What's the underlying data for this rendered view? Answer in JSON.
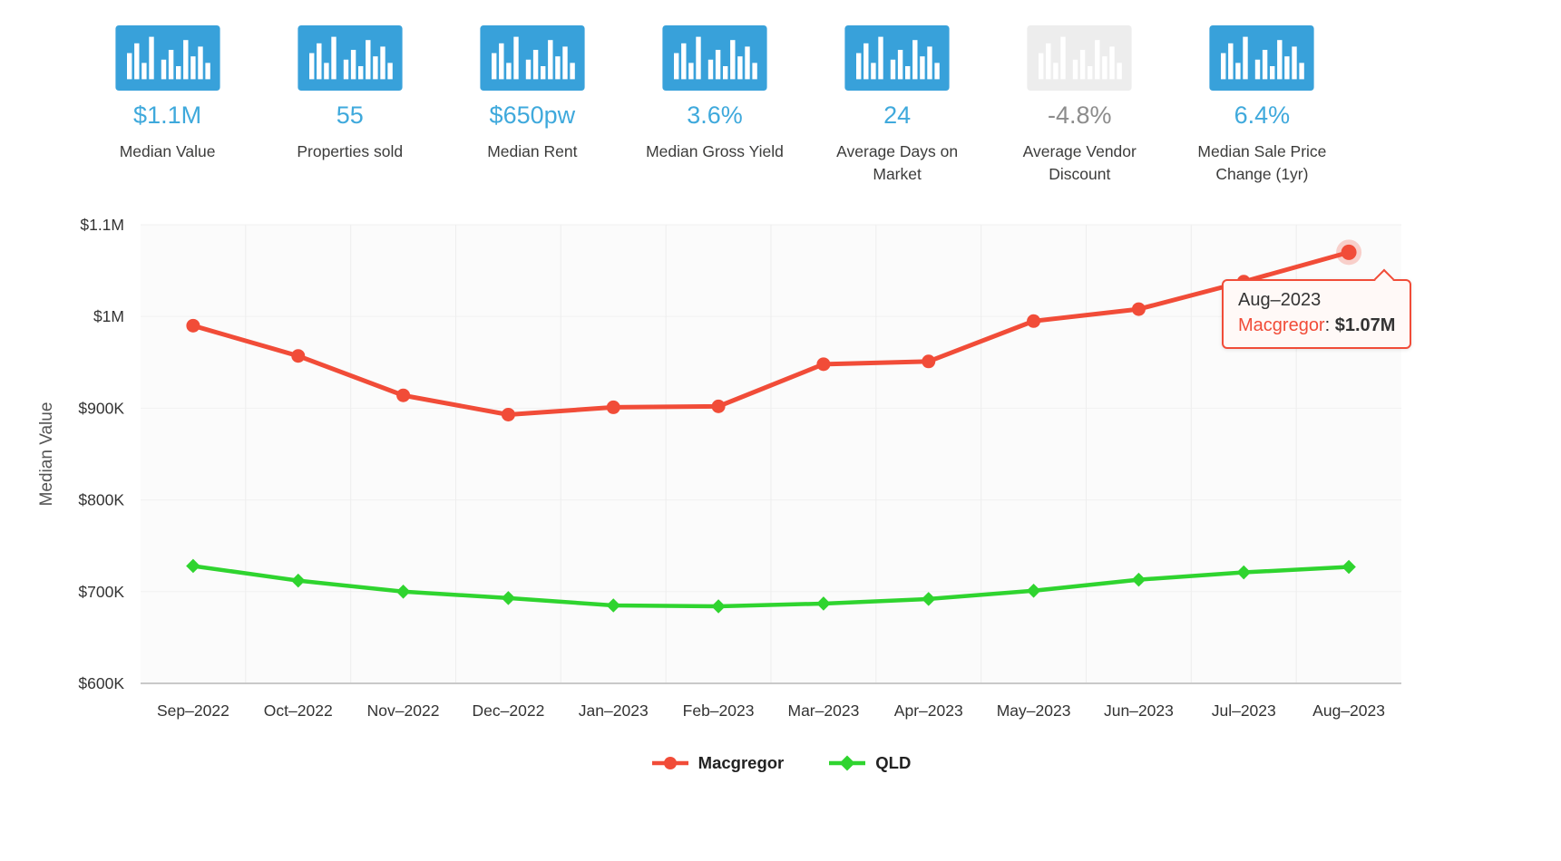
{
  "stats": [
    {
      "value": "$1.1M",
      "label": "Median Value",
      "state": "active"
    },
    {
      "value": "55",
      "label": "Properties sold",
      "state": "active"
    },
    {
      "value": "$650pw",
      "label": "Median Rent",
      "state": "active"
    },
    {
      "value": "3.6%",
      "label": "Median Gross Yield",
      "state": "active"
    },
    {
      "value": "24",
      "label": "Average Days on Market",
      "state": "active"
    },
    {
      "value": "-4.8%",
      "label": "Average Vendor Discount",
      "state": "inactive"
    },
    {
      "value": "6.4%",
      "label": "Median Sale Price Change (1yr)",
      "state": "active"
    }
  ],
  "colors": {
    "accent_blue": "#38A1DA",
    "stat_value_blue": "#3FA9DC",
    "inactive_grey": "#EDEDED",
    "inactive_text": "#8C8C8C",
    "text_dark": "#3C3C3B",
    "macgregor_red": "#F14C38",
    "qld_green": "#2FD42F"
  },
  "chart_data": {
    "type": "line",
    "title": "",
    "xlabel": "",
    "ylabel": "Median Value",
    "x": [
      "Sep–2022",
      "Oct–2022",
      "Nov–2022",
      "Dec–2022",
      "Jan–2023",
      "Feb–2023",
      "Mar–2023",
      "Apr–2023",
      "May–2023",
      "Jun–2023",
      "Jul–2023",
      "Aug–2023"
    ],
    "series": [
      {
        "name": "Macgregor",
        "color": "#F14C38",
        "marker": "circle",
        "values": [
          990000,
          957000,
          914000,
          893000,
          901000,
          902000,
          948000,
          951000,
          995000,
          1008000,
          1038000,
          1070000
        ]
      },
      {
        "name": "QLD",
        "color": "#2FD42F",
        "marker": "diamond",
        "values": [
          728000,
          712000,
          700000,
          693000,
          685000,
          684000,
          687000,
          692000,
          701000,
          713000,
          721000,
          727000
        ]
      }
    ],
    "ylim": [
      600000,
      1100000
    ],
    "yticks": [
      {
        "value": 600000,
        "label": "$600K"
      },
      {
        "value": 700000,
        "label": "$700K"
      },
      {
        "value": 800000,
        "label": "$800K"
      },
      {
        "value": 900000,
        "label": "$900K"
      },
      {
        "value": 1000000,
        "label": "$1M"
      },
      {
        "value": 1100000,
        "label": "$1.1M"
      }
    ],
    "grid": true,
    "legend_position": "bottom",
    "highlight": {
      "series_index": 0,
      "point_index": 11
    }
  },
  "tooltip": {
    "title": "Aug–2023",
    "label": "Macgregor",
    "separator": ": ",
    "value": "$1.07M"
  }
}
